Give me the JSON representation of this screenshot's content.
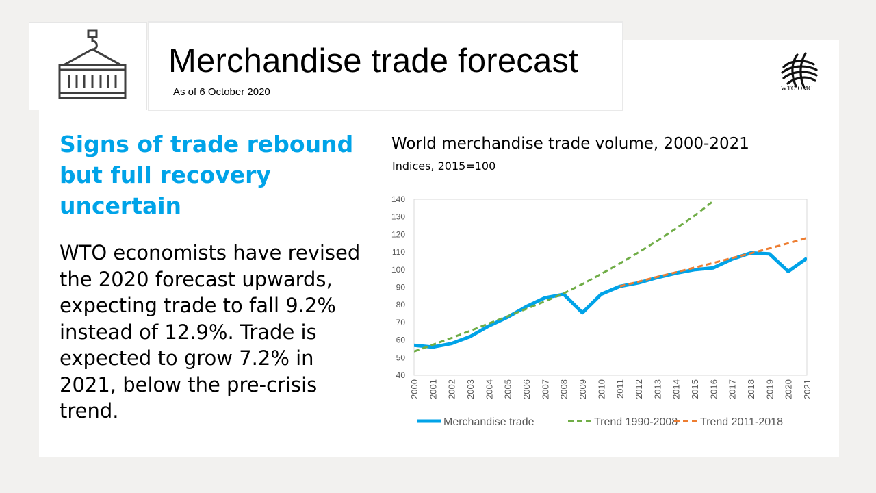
{
  "header": {
    "title": "Merchandise trade forecast",
    "as_of": "As of 6 October 2020",
    "logo_text": "WTO OMC",
    "icon": "shipping-container-icon"
  },
  "headline": "Signs of trade rebound but full recovery uncertain",
  "body": "WTO economists have revised the 2020 forecast upwards, expecting trade to fall 9.2% instead of 12.9%. Trade is expected to grow 7.2% in 2021, below the pre-crisis trend.",
  "colors": {
    "accent": "#00a3e8",
    "merchandise": "#00a3e8",
    "trend_1990_2008": "#70ad47",
    "trend_2011_2018": "#ed7d31"
  },
  "chart_data": {
    "type": "line",
    "title": "World merchandise trade volume, 2000-2021",
    "subtitle": "Indices, 2015=100",
    "categories": [
      "2000",
      "2001",
      "2002",
      "2003",
      "2004",
      "2005",
      "2006",
      "2007",
      "2008",
      "2009",
      "2010",
      "2011",
      "2012",
      "2013",
      "2014",
      "2015",
      "2016",
      "2017",
      "2018",
      "2019",
      "2020",
      "2021"
    ],
    "ylim": [
      40,
      140
    ],
    "yticks": [
      40,
      50,
      60,
      70,
      80,
      90,
      100,
      110,
      120,
      130,
      140
    ],
    "legend_position": "bottom",
    "grid": false,
    "series": [
      {
        "name": "Merchandise trade",
        "style": "solid",
        "color": "#00a3e8",
        "values": [
          57,
          56,
          58,
          62,
          68,
          73,
          79,
          84,
          86,
          75.5,
          86,
          90.5,
          92.5,
          95.5,
          98,
          100,
          101,
          106,
          109.5,
          109,
          99,
          106.5
        ]
      },
      {
        "name": "Trend 1990-2008",
        "style": "dashed",
        "color": "#70ad47",
        "values": [
          53.5,
          57.3,
          61.2,
          65.2,
          69.4,
          73.5,
          77.7,
          82.0,
          86.5,
          91.8,
          97.5,
          103.5,
          109.8,
          116.4,
          123.4,
          130.7,
          139.0,
          null,
          null,
          null,
          null,
          null
        ]
      },
      {
        "name": "Trend 2011-2018",
        "style": "dashed",
        "color": "#ed7d31",
        "values": [
          null,
          null,
          null,
          null,
          null,
          null,
          null,
          null,
          null,
          null,
          null,
          90.5,
          93.2,
          95.9,
          98.5,
          101.2,
          103.8,
          106.6,
          109.3,
          112.1,
          115.0,
          118.0
        ]
      }
    ]
  }
}
